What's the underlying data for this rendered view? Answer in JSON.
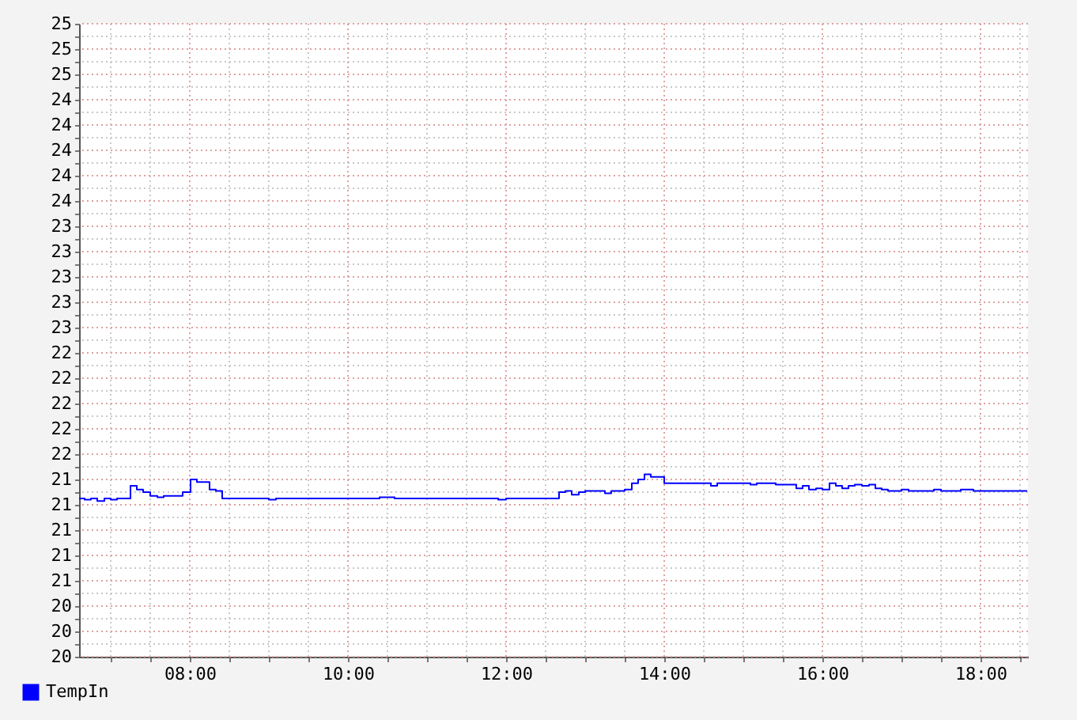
{
  "chart_data": {
    "type": "step",
    "legend": "bottom left",
    "grid": true,
    "x": [
      6.6,
      6.67,
      6.75,
      6.83,
      6.92,
      7.0,
      7.08,
      7.25,
      7.33,
      7.41,
      7.5,
      7.59,
      7.67,
      7.91,
      8.01,
      8.09,
      8.25,
      8.33,
      8.41,
      9.0,
      9.09,
      10.4,
      10.59,
      11.9,
      12.0,
      12.67,
      12.75,
      12.83,
      12.92,
      13.0,
      13.25,
      13.33,
      13.5,
      13.59,
      13.67,
      13.75,
      13.83,
      14.0,
      14.59,
      14.67,
      15.09,
      15.17,
      15.41,
      15.67,
      15.75,
      15.83,
      15.92,
      16.0,
      16.09,
      16.17,
      16.25,
      16.33,
      16.41,
      16.5,
      16.59,
      16.67,
      16.75,
      16.83,
      17.0,
      17.09,
      17.41,
      17.5,
      17.75,
      17.91,
      18.59
    ],
    "series": [
      {
        "name": "TempIn",
        "color": "#0000ff",
        "values": [
          21.25,
          21.24,
          21.25,
          21.23,
          21.25,
          21.24,
          21.25,
          21.35,
          21.32,
          21.3,
          21.27,
          21.26,
          21.27,
          21.3,
          21.4,
          21.38,
          21.32,
          21.31,
          21.25,
          21.24,
          21.25,
          21.26,
          21.25,
          21.24,
          21.25,
          21.3,
          21.31,
          21.28,
          21.3,
          21.31,
          21.29,
          21.31,
          21.32,
          21.37,
          21.4,
          21.44,
          21.42,
          21.37,
          21.35,
          21.37,
          21.36,
          21.37,
          21.36,
          21.33,
          21.35,
          21.32,
          21.33,
          21.32,
          21.37,
          21.35,
          21.33,
          21.35,
          21.36,
          21.35,
          21.36,
          21.33,
          21.32,
          21.31,
          21.32,
          21.31,
          21.32,
          21.31,
          21.32,
          21.31,
          21.31
        ]
      }
    ],
    "xlim": [
      6.6,
      18.6
    ],
    "xticks": [
      {
        "value": 7,
        "label": null
      },
      {
        "value": 7.5,
        "label": null
      },
      {
        "value": 8,
        "label": "08:00"
      },
      {
        "value": 8.5,
        "label": null
      },
      {
        "value": 9,
        "label": null
      },
      {
        "value": 9.5,
        "label": null
      },
      {
        "value": 10,
        "label": "10:00"
      },
      {
        "value": 10.5,
        "label": null
      },
      {
        "value": 11,
        "label": null
      },
      {
        "value": 11.5,
        "label": null
      },
      {
        "value": 12,
        "label": "12:00"
      },
      {
        "value": 12.5,
        "label": null
      },
      {
        "value": 13,
        "label": null
      },
      {
        "value": 13.5,
        "label": null
      },
      {
        "value": 14,
        "label": "14:00"
      },
      {
        "value": 14.5,
        "label": null
      },
      {
        "value": 15,
        "label": null
      },
      {
        "value": 15.5,
        "label": null
      },
      {
        "value": 16,
        "label": "16:00"
      },
      {
        "value": 16.5,
        "label": null
      },
      {
        "value": 17,
        "label": null
      },
      {
        "value": 17.5,
        "label": null
      },
      {
        "value": 18,
        "label": "18:00"
      },
      {
        "value": 18.5,
        "label": null
      }
    ],
    "ylim": [
      20,
      25
    ],
    "yticks": [
      20,
      {
        "value": 20.1,
        "label": null
      },
      {
        "value": 20.2,
        "label": "20"
      },
      {
        "value": 20.3,
        "label": null
      },
      {
        "value": 20.4,
        "label": "20"
      },
      {
        "value": 20.5,
        "label": null
      },
      {
        "value": 20.6,
        "label": "21"
      },
      {
        "value": 20.7,
        "label": null
      },
      {
        "value": 20.8,
        "label": "21"
      },
      {
        "value": 20.9,
        "label": null
      },
      21,
      {
        "value": 21.1,
        "label": null
      },
      {
        "value": 21.2,
        "label": "21"
      },
      {
        "value": 21.3,
        "label": null
      },
      {
        "value": 21.4,
        "label": "21"
      },
      {
        "value": 21.5,
        "label": null
      },
      {
        "value": 21.6,
        "label": "22"
      },
      {
        "value": 21.7,
        "label": null
      },
      {
        "value": 21.8,
        "label": "22"
      },
      {
        "value": 21.9,
        "label": null
      },
      22,
      {
        "value": 22.1,
        "label": null
      },
      {
        "value": 22.2,
        "label": "22"
      },
      {
        "value": 22.3,
        "label": null
      },
      {
        "value": 22.4,
        "label": "22"
      },
      {
        "value": 22.5,
        "label": null
      },
      {
        "value": 22.6,
        "label": "23"
      },
      {
        "value": 22.7,
        "label": null
      },
      {
        "value": 22.8,
        "label": "23"
      },
      {
        "value": 22.9,
        "label": null
      },
      23,
      {
        "value": 23.1,
        "label": null
      },
      {
        "value": 23.2,
        "label": "23"
      },
      {
        "value": 23.3,
        "label": null
      },
      {
        "value": 23.4,
        "label": "23"
      },
      {
        "value": 23.5,
        "label": null
      },
      {
        "value": 23.6,
        "label": "24"
      },
      {
        "value": 23.7,
        "label": null
      },
      {
        "value": 23.8,
        "label": "24"
      },
      {
        "value": 23.9,
        "label": null
      },
      24,
      {
        "value": 24.1,
        "label": null
      },
      {
        "value": 24.2,
        "label": "24"
      },
      {
        "value": 24.3,
        "label": null
      },
      {
        "value": 24.4,
        "label": "24"
      },
      {
        "value": 24.5,
        "label": null
      },
      {
        "value": 24.6,
        "label": "25"
      },
      {
        "value": 24.7,
        "label": null
      },
      {
        "value": 24.8,
        "label": "25"
      },
      {
        "value": 24.9,
        "label": null
      },
      25
    ]
  }
}
